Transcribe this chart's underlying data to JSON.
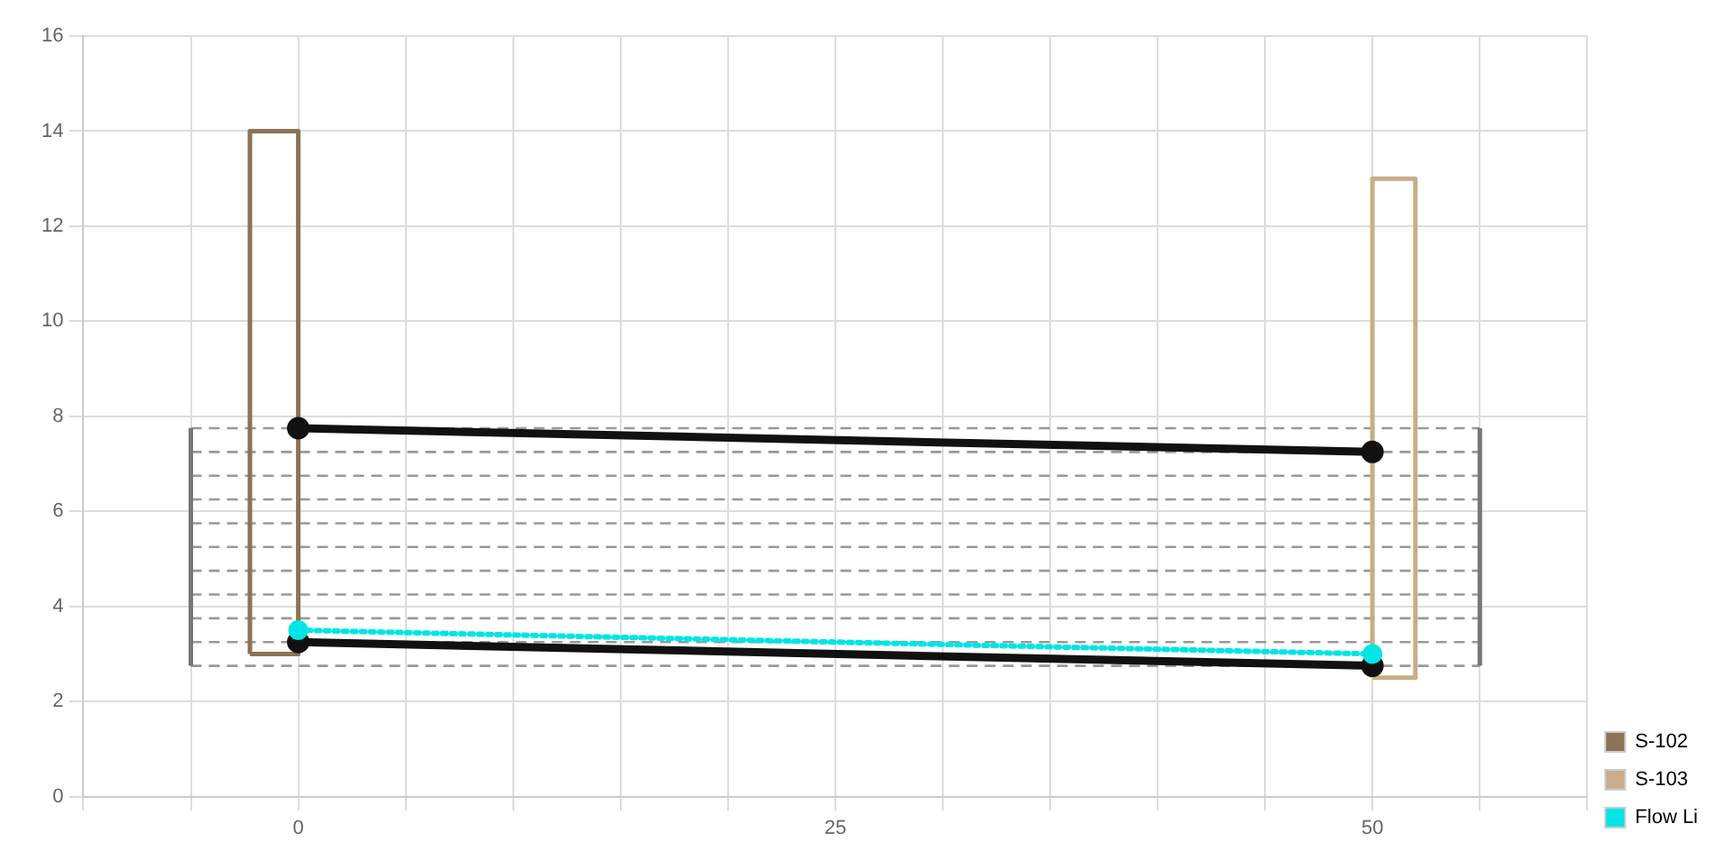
{
  "chart_data": {
    "type": "line",
    "xlim": [
      -10,
      60
    ],
    "ylim": [
      0,
      16
    ],
    "xticks": [
      {
        "value": -10,
        "label": null
      },
      {
        "value": -5,
        "label": null
      },
      0,
      {
        "value": 5,
        "label": null
      },
      {
        "value": 10,
        "label": null
      },
      {
        "value": 15,
        "label": null
      },
      {
        "value": 20,
        "label": null
      },
      25,
      {
        "value": 30,
        "label": null
      },
      {
        "value": 35,
        "label": null
      },
      {
        "value": 40,
        "label": null
      },
      {
        "value": 45,
        "label": null
      },
      50,
      {
        "value": 55,
        "label": null
      },
      {
        "value": 60,
        "label": null
      }
    ],
    "yticks": [
      0,
      2,
      4,
      6,
      8,
      10,
      12,
      14,
      16
    ],
    "grid": true,
    "legend": "right",
    "series": [
      {
        "color": "#999999",
        "line_style": "dashed",
        "marker": "none",
        "x": [
          -5,
          55
        ],
        "values": [
          2.75,
          2.75
        ]
      },
      {
        "color": "#999999",
        "line_style": "dashed",
        "marker": "none",
        "x": [
          -5,
          55
        ],
        "values": [
          3.25,
          3.25
        ]
      },
      {
        "color": "#999999",
        "line_style": "dashed",
        "marker": "none",
        "x": [
          -5,
          55
        ],
        "values": [
          3.75,
          3.75
        ]
      },
      {
        "color": "#999999",
        "line_style": "dashed",
        "marker": "none",
        "x": [
          -5,
          55
        ],
        "values": [
          4.25,
          4.25
        ]
      },
      {
        "color": "#999999",
        "line_style": "dashed",
        "marker": "none",
        "x": [
          -5,
          55
        ],
        "values": [
          4.75,
          4.75
        ]
      },
      {
        "color": "#999999",
        "line_style": "dashed",
        "marker": "none",
        "x": [
          -5,
          55
        ],
        "values": [
          5.25,
          5.25
        ]
      },
      {
        "color": "#999999",
        "line_style": "dashed",
        "marker": "none",
        "x": [
          -5,
          55
        ],
        "values": [
          5.75,
          5.75
        ]
      },
      {
        "color": "#999999",
        "line_style": "dashed",
        "marker": "none",
        "x": [
          -5,
          55
        ],
        "values": [
          6.25,
          6.25
        ]
      },
      {
        "color": "#999999",
        "line_style": "dashed",
        "marker": "none",
        "x": [
          -5,
          55
        ],
        "values": [
          6.75,
          6.75
        ]
      },
      {
        "color": "#999999",
        "line_style": "dashed",
        "marker": "none",
        "x": [
          -5,
          55
        ],
        "values": [
          7.25,
          7.25
        ]
      },
      {
        "color": "#999999",
        "line_style": "dashed",
        "marker": "none",
        "x": [
          -5,
          55
        ],
        "values": [
          7.75,
          7.75
        ]
      },
      {
        "color": "#777777",
        "line_style": "solid",
        "marker": "none",
        "x": [
          -5,
          -5
        ],
        "values": [
          2.75,
          7.75
        ]
      },
      {
        "color": "#777777",
        "line_style": "solid",
        "marker": "none",
        "x": [
          55,
          55
        ],
        "values": [
          2.75,
          7.75
        ]
      },
      {
        "name": "S-102",
        "color": "#8b7355",
        "line_style": "solid",
        "marker": "none",
        "x": [
          -2.25,
          -2.25,
          0,
          0
        ],
        "values": [
          3,
          14,
          14,
          3
        ]
      },
      {
        "color": "#8b7355",
        "line_style": "solid",
        "marker": "none",
        "x": [
          -2.25,
          0
        ],
        "values": [
          3,
          3
        ]
      },
      {
        "name": "S-103",
        "color": "#c8ad88",
        "line_style": "solid",
        "marker": "none",
        "x": [
          50,
          50,
          52,
          52
        ],
        "values": [
          2.5,
          13,
          13,
          2.5
        ]
      },
      {
        "color": "#c8ad88",
        "line_style": "solid",
        "marker": "none",
        "x": [
          50,
          52
        ],
        "values": [
          2.5,
          2.5
        ]
      },
      {
        "color": "#111111",
        "line_style": "solid",
        "marker": "circle",
        "x": [
          0,
          50
        ],
        "values": [
          7.75,
          7.25
        ]
      },
      {
        "color": "#111111",
        "line_style": "solid",
        "marker": "circle",
        "x": [
          0,
          50
        ],
        "values": [
          3.25,
          2.75
        ]
      },
      {
        "name": "Flow Li",
        "color": "#00e5e5",
        "line_style": "dotted",
        "marker": "circle",
        "x": [
          0,
          50
        ],
        "values": [
          3.5,
          3.0
        ]
      }
    ]
  }
}
